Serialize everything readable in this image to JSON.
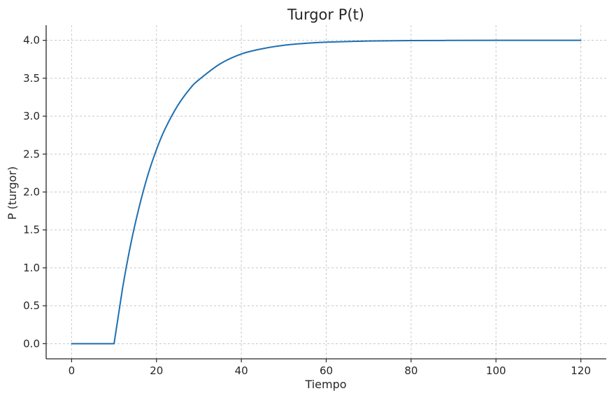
{
  "chart_data": {
    "type": "line",
    "title": "Turgor P(t)",
    "xlabel": "Tiempo",
    "ylabel": "P (turgor)",
    "xlim": [
      -6,
      126
    ],
    "ylim": [
      -0.2,
      4.2
    ],
    "xticks": [
      0,
      20,
      40,
      60,
      80,
      100,
      120
    ],
    "yticks": [
      0.0,
      0.5,
      1.0,
      1.5,
      2.0,
      2.5,
      3.0,
      3.5,
      4.0
    ],
    "xtick_labels": [
      "0",
      "20",
      "40",
      "60",
      "80",
      "100",
      "120"
    ],
    "ytick_labels": [
      "0.0",
      "0.5",
      "1.0",
      "1.5",
      "2.0",
      "2.5",
      "3.0",
      "3.5",
      "4.0"
    ],
    "grid": true,
    "series": [
      {
        "color": "#1f6fb0",
        "x": [
          0,
          5,
          10,
          12,
          14,
          16,
          18,
          20,
          22,
          25,
          28,
          30,
          35,
          40,
          45,
          50,
          55,
          60,
          70,
          80,
          90,
          100,
          110,
          120
        ],
        "y": [
          0.0,
          0.0,
          0.0,
          0.73,
          1.33,
          1.82,
          2.23,
          2.56,
          2.83,
          3.14,
          3.37,
          3.48,
          3.69,
          3.82,
          3.89,
          3.935,
          3.96,
          3.976,
          3.991,
          3.997,
          3.999,
          4.0,
          4.0,
          4.0
        ]
      }
    ]
  }
}
